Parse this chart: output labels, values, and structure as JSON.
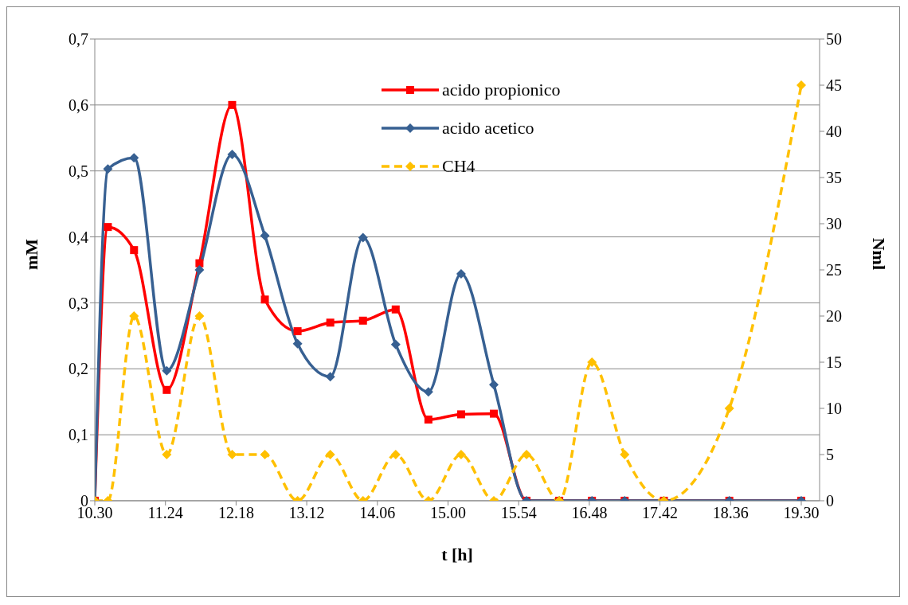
{
  "chart_data": {
    "type": "line",
    "xlabel": "t [h]",
    "ylabel": "mM",
    "y2label": "Nml",
    "x": [
      "2000-01-01T10:30",
      "2000-01-01T10:40",
      "2000-01-01T11:00",
      "2000-01-01T11:25",
      "2000-01-01T11:50",
      "2000-01-01T12:15",
      "2000-01-01T12:40",
      "2000-01-01T13:05",
      "2000-01-01T13:30",
      "2000-01-01T13:55",
      "2000-01-01T14:20",
      "2000-01-01T14:45",
      "2000-01-01T15:10",
      "2000-01-01T15:35",
      "2000-01-01T16:00",
      "2000-01-01T16:25",
      "2000-01-01T16:50",
      "2000-01-01T17:15",
      "2000-01-01T17:45",
      "2000-01-01T18:35",
      "2000-01-01T19:30"
    ],
    "series": [
      {
        "name": "acido propionico",
        "color": "#ff0000",
        "marker": "square",
        "line_style": "solid",
        "values": [
          0,
          0.415,
          0.38,
          0.168,
          0.36,
          0.6,
          0.305,
          0.257,
          0.27,
          0.273,
          0.29,
          0.123,
          0.131,
          0.132,
          0,
          0,
          0,
          0,
          0,
          0,
          0
        ]
      },
      {
        "name": "acido acetico",
        "color": "#376092",
        "marker": "diamond",
        "line_style": "solid",
        "values": [
          0,
          0.503,
          0.52,
          0.197,
          0.35,
          0.525,
          0.402,
          0.238,
          0.188,
          0.399,
          0.237,
          0.165,
          0.344,
          0.176,
          0,
          0,
          0,
          0,
          0,
          0,
          0
        ]
      },
      {
        "name": "CH4",
        "color": "#ffc000",
        "marker": "diamond",
        "line_style": "dashed",
        "axis": "y2",
        "values": [
          0,
          0,
          20,
          5,
          20,
          5,
          5,
          0,
          5,
          0,
          5,
          0,
          5,
          0,
          5,
          0,
          15,
          5,
          0,
          10,
          45
        ]
      }
    ],
    "xlim": [
      "2000-01-01T10:30",
      "2000-01-01T19:44"
    ],
    "xticks": [
      {
        "value": "2000-01-01T10:30",
        "label": "10.30"
      },
      {
        "value": "2000-01-01T11:24",
        "label": "11.24"
      },
      {
        "value": "2000-01-01T12:18",
        "label": "12.18"
      },
      {
        "value": "2000-01-01T13:12",
        "label": "13.12"
      },
      {
        "value": "2000-01-01T14:06",
        "label": "14.06"
      },
      {
        "value": "2000-01-01T15:00",
        "label": "15.00"
      },
      {
        "value": "2000-01-01T15:54",
        "label": "15.54"
      },
      {
        "value": "2000-01-01T16:48",
        "label": "16.48"
      },
      {
        "value": "2000-01-01T17:42",
        "label": "17.42"
      },
      {
        "value": "2000-01-01T18:36",
        "label": "18.36"
      },
      {
        "value": "2000-01-01T19:30",
        "label": "19.30"
      }
    ],
    "ylim": [
      0,
      0.7
    ],
    "yticks": [
      0,
      {
        "value": 0.1,
        "label": "0,1"
      },
      {
        "value": 0.2,
        "label": "0,2"
      },
      {
        "value": 0.3,
        "label": "0,3"
      },
      {
        "value": 0.4,
        "label": "0,4"
      },
      {
        "value": 0.5,
        "label": "0,5"
      },
      {
        "value": 0.6,
        "label": "0,6"
      },
      {
        "value": 0.7,
        "label": "0,7"
      }
    ],
    "y2lim": [
      0,
      50
    ],
    "y2ticks": [
      0,
      5,
      10,
      15,
      20,
      25,
      30,
      35,
      40,
      45,
      50
    ],
    "grid": "y",
    "legend": "top"
  }
}
